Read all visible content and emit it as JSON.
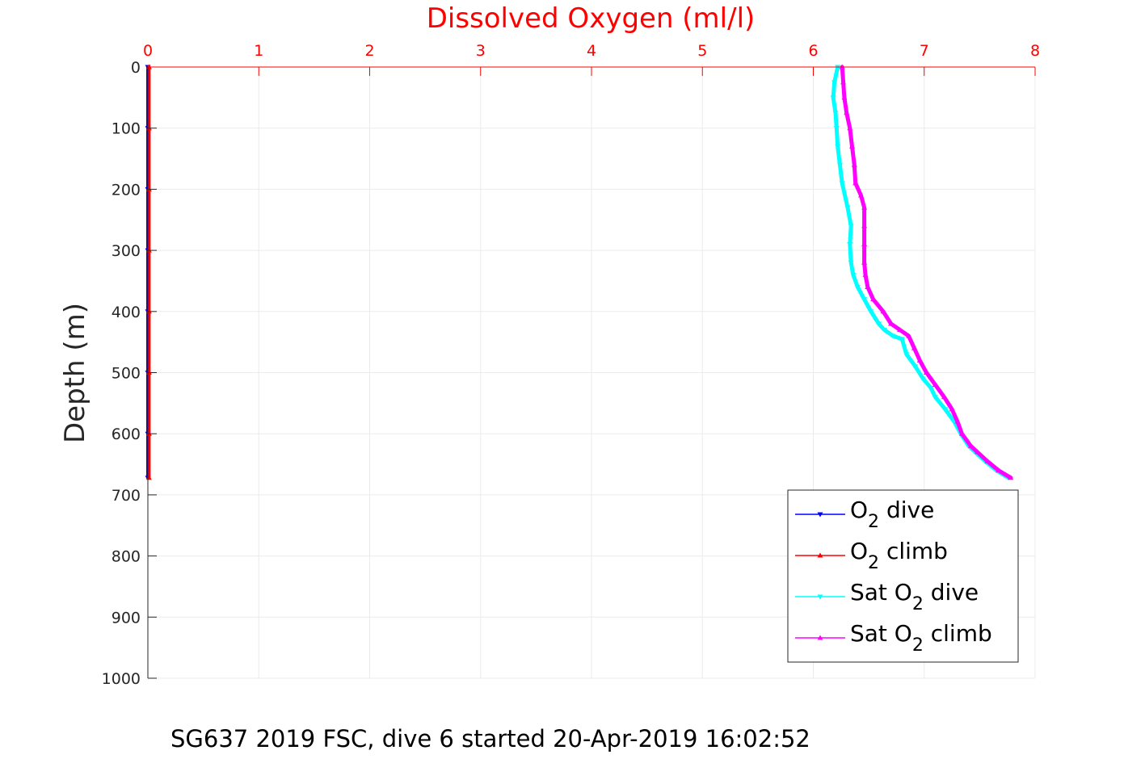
{
  "chart_data": {
    "type": "line",
    "title": "Dissolved Oxygen (ml/l)",
    "xlabel": "",
    "ylabel": "Depth (m)",
    "xlim": [
      0,
      8
    ],
    "ylim": [
      0,
      1000
    ],
    "y_reversed": true,
    "x_axis_location": "top",
    "grid": true,
    "legend_position": "bottom-right",
    "x_ticks": [
      "0",
      "1",
      "2",
      "3",
      "4",
      "5",
      "6",
      "7",
      "8"
    ],
    "y_ticks": [
      "0",
      "100",
      "200",
      "300",
      "400",
      "500",
      "600",
      "700",
      "800",
      "900",
      "1000"
    ],
    "colors": {
      "title": "#ff0000",
      "x_ticks": "#ff0000",
      "axis": "#000000",
      "grid": "#ebebeb"
    },
    "series": [
      {
        "name": "O2 dive",
        "color": "#0000ff",
        "marker": "triangle-down",
        "x": [
          0.0,
          0.0,
          0.0,
          0.0,
          0.0,
          0.0,
          0.0,
          0.0
        ],
        "y": [
          0,
          100,
          200,
          300,
          400,
          500,
          600,
          672
        ]
      },
      {
        "name": "O2 climb",
        "color": "#ff0000",
        "marker": "triangle-up",
        "x": [
          0.01,
          0.01,
          0.01,
          0.01,
          0.01,
          0.01,
          0.01,
          0.01
        ],
        "y": [
          0,
          100,
          200,
          300,
          400,
          500,
          600,
          672
        ]
      },
      {
        "name": "Sat O2 dive",
        "color": "#00ffff",
        "marker": "triangle-down",
        "x": [
          6.22,
          6.19,
          6.18,
          6.2,
          6.21,
          6.22,
          6.24,
          6.26,
          6.31,
          6.34,
          6.33,
          6.34,
          6.36,
          6.4,
          6.46,
          6.52,
          6.59,
          6.64,
          6.72,
          6.8,
          6.84,
          6.92,
          6.99,
          7.06,
          7.1,
          7.19,
          7.27,
          7.33,
          7.4,
          7.46,
          7.55,
          7.65,
          7.76
        ],
        "y": [
          0,
          25,
          50,
          75,
          100,
          130,
          160,
          190,
          230,
          260,
          290,
          320,
          340,
          360,
          380,
          400,
          420,
          430,
          440,
          445,
          470,
          490,
          510,
          525,
          540,
          560,
          580,
          600,
          620,
          630,
          645,
          660,
          672
        ]
      },
      {
        "name": "Sat O2 climb",
        "color": "#ff00ff",
        "marker": "triangle-up",
        "x": [
          6.26,
          6.27,
          6.28,
          6.3,
          6.33,
          6.35,
          6.37,
          6.38,
          6.43,
          6.46,
          6.46,
          6.46,
          6.46,
          6.47,
          6.49,
          6.54,
          6.63,
          6.7,
          6.78,
          6.86,
          6.91,
          6.96,
          7.02,
          7.1,
          7.18,
          7.25,
          7.3,
          7.34,
          7.42,
          7.48,
          7.57,
          7.67,
          7.78
        ],
        "y": [
          0,
          25,
          50,
          75,
          100,
          130,
          160,
          190,
          210,
          230,
          260,
          290,
          320,
          340,
          360,
          380,
          400,
          420,
          430,
          440,
          460,
          480,
          500,
          520,
          540,
          560,
          580,
          600,
          620,
          630,
          645,
          660,
          672
        ]
      }
    ]
  },
  "legend": {
    "items": [
      {
        "prefix": "O",
        "sub": "2",
        "suffix": " dive",
        "color": "#0000ff",
        "marker": "down"
      },
      {
        "prefix": "O",
        "sub": "2",
        "suffix": " climb",
        "color": "#ff0000",
        "marker": "up"
      },
      {
        "prefix": "Sat O",
        "sub": "2",
        "suffix": " dive",
        "color": "#00ffff",
        "marker": "down"
      },
      {
        "prefix": "Sat O",
        "sub": "2",
        "suffix": " climb",
        "color": "#ff00ff",
        "marker": "up"
      }
    ]
  },
  "caption": "SG637 2019 FSC, dive 6 started 20-Apr-2019 16:02:52"
}
